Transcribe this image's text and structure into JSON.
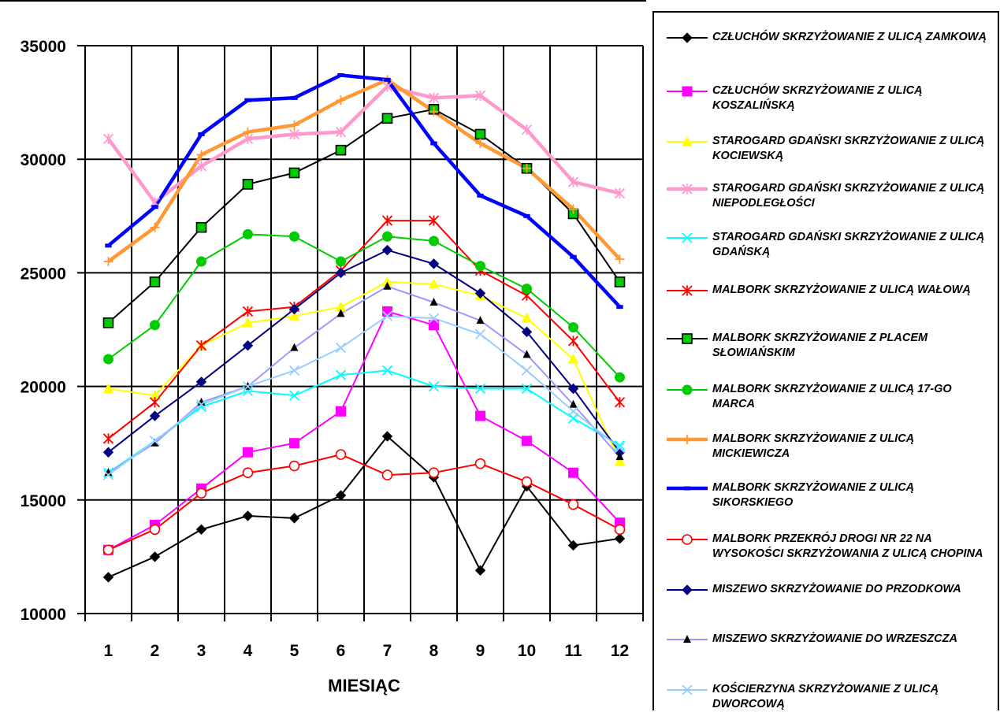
{
  "chart_data": {
    "type": "line",
    "xlabel": "MIESIĄC",
    "ylabel": "",
    "title": "",
    "x": [
      "1",
      "2",
      "3",
      "4",
      "5",
      "6",
      "7",
      "8",
      "9",
      "10",
      "11",
      "12"
    ],
    "ylim": [
      10000,
      35000
    ],
    "yticks": [
      "10000",
      "15000",
      "20000",
      "25000",
      "30000",
      "35000"
    ],
    "grid": true,
    "legend_position": "right",
    "series": [
      {
        "name": "CZŁUCHÓW SKRZYŻOWANIE Z ULICĄ ZAMKOWĄ",
        "color": "#000000",
        "marker": "diamond",
        "values": [
          11600,
          12500,
          13700,
          14300,
          14200,
          15200,
          17800,
          16000,
          11900,
          15600,
          13000,
          13300
        ]
      },
      {
        "name": "CZŁUCHÓW SKRZYŻOWANIE Z ULICĄ KOSZALIŃSKĄ",
        "color": "#FF00FF",
        "marker": "square",
        "values": [
          12800,
          13900,
          15500,
          17100,
          17500,
          18900,
          23300,
          22700,
          18700,
          17600,
          16200,
          14000
        ]
      },
      {
        "name": "STAROGARD GDAŃSKI SKRZYŻOWANIE Z ULICĄ KOCIEWSKĄ",
        "color": "#FFFF00",
        "marker": "triangle",
        "values": [
          19900,
          19600,
          21800,
          22800,
          23100,
          23500,
          24600,
          24500,
          24000,
          23000,
          21200,
          16700
        ]
      },
      {
        "name": "STAROGARD GDAŃSKI SKRZYŻOWANIE Z ULICĄ NIEPODLEGŁOŚCI",
        "color": "#FF99CC",
        "marker": "star",
        "values": [
          30900,
          28100,
          29700,
          30900,
          31100,
          31200,
          33200,
          32700,
          32800,
          31300,
          29000,
          28500
        ]
      },
      {
        "name": "STAROGARD GDAŃSKI SKRZYŻOWANIE Z ULICĄ GDAŃSKĄ",
        "color": "#00FFFF",
        "marker": "x",
        "values": [
          16200,
          17600,
          19100,
          19800,
          19600,
          20500,
          20700,
          20000,
          19900,
          19900,
          18600,
          17400
        ]
      },
      {
        "name": "MALBORK SKRZYŻOWANIE Z ULICĄ WAŁOWĄ",
        "color": "#FF0000",
        "marker": "star",
        "values": [
          17700,
          19300,
          21800,
          23300,
          23500,
          25100,
          27300,
          27300,
          25100,
          24000,
          22000,
          19300
        ]
      },
      {
        "name": "MALBORK SKRZYŻOWANIE Z PLACEM SŁOWIAŃSKIM",
        "color": "#000000",
        "marker": "square-green",
        "values": [
          22800,
          24600,
          27000,
          28900,
          29400,
          30400,
          31800,
          32200,
          31100,
          29600,
          27600,
          24600
        ]
      },
      {
        "name": "MALBORK SKRZYŻOWANIE Z ULICĄ 17-GO MARCA",
        "color": "#00CC00",
        "marker": "circle-filled",
        "values": [
          21200,
          22700,
          25500,
          26700,
          26600,
          25500,
          26600,
          26400,
          25300,
          24300,
          22600,
          20400
        ]
      },
      {
        "name": "MALBORK SKRZYŻOWANIE Z ULICĄ MICKIEWICZA",
        "color": "#FF9933",
        "marker": "plus",
        "values": [
          25500,
          27000,
          30200,
          31200,
          31500,
          32600,
          33500,
          32100,
          30700,
          29600,
          27800,
          25600
        ]
      },
      {
        "name": "MALBORK SKRZYŻOWANIE Z ULICĄ SIKORSKIEGO",
        "color": "#0000FF",
        "marker": "dash",
        "values": [
          26200,
          27900,
          31100,
          32600,
          32700,
          33700,
          33500,
          30700,
          28400,
          27500,
          25700,
          23500
        ]
      },
      {
        "name": "MALBORK PRZEKRÓJ DROGI NR 22 NA WYSOKOŚCI SKRZYŻOWANIA Z ULICĄ CHOPINA",
        "color": "#FF0000",
        "marker": "circle-open",
        "values": [
          12800,
          13700,
          15300,
          16200,
          16500,
          17000,
          16100,
          16200,
          16600,
          15800,
          14800,
          13700
        ]
      },
      {
        "name": "MISZEWO SKRZYŻOWANIE DO PRZODKOWA",
        "color": "#000080",
        "marker": "diamond",
        "values": [
          17100,
          18700,
          20200,
          21800,
          23400,
          25000,
          26000,
          25400,
          24100,
          22400,
          19900,
          17100
        ]
      },
      {
        "name": "MISZEWO SKRZYŻOWANIE DO WRZESZCZA",
        "color": "#9999FF",
        "marker": "triangle-black",
        "values": [
          16200,
          17500,
          19300,
          20000,
          21700,
          23200,
          24400,
          23700,
          22900,
          21400,
          19200,
          16900
        ]
      },
      {
        "name": "KOŚCIERZYNA SKRZYŻOWANIE Z ULICĄ DWORCOWĄ",
        "color": "#99CCFF",
        "marker": "x",
        "values": [
          16100,
          17600,
          19200,
          20000,
          20700,
          21700,
          23100,
          23000,
          22300,
          20700,
          18900,
          17300
        ]
      }
    ]
  },
  "legend": {
    "items": [
      {
        "label": "CZŁUCHÓW SKRZYŻOWANIE Z ULICĄ ZAMKOWĄ"
      },
      {
        "label": "CZŁUCHÓW SKRZYŻOWANIE Z ULICĄ\nKOSZALIŃSKĄ"
      },
      {
        "label": "STAROGARD GDAŃSKI SKRZYŻOWANIE Z ULICĄ\nKOCIEWSKĄ"
      },
      {
        "label": "STAROGARD GDAŃSKI SKRZYŻOWANIE Z ULICĄ\nNIEPODLEGŁOŚCI"
      },
      {
        "label": "STAROGARD GDAŃSKI SKRZYŻOWANIE Z ULICĄ\nGDAŃSKĄ"
      },
      {
        "label": "MALBORK SKRZYŻOWANIE Z ULICĄ WAŁOWĄ"
      },
      {
        "label": "MALBORK SKRZYŻOWANIE Z PLACEM\nSŁOWIAŃSKIM"
      },
      {
        "label": "MALBORK SKRZYŻOWANIE Z ULICĄ 17-GO\nMARCA"
      },
      {
        "label": "MALBORK SKRZYŻOWANIE Z ULICĄ\nMICKIEWICZA"
      },
      {
        "label": "MALBORK SKRZYŻOWANIE Z ULICĄ\nSIKORSKIEGO"
      },
      {
        "label": "MALBORK PRZEKRÓJ DROGI NR 22 NA\nWYSOKOŚCI SKRZYŻOWANIA Z ULICĄ CHOPINA"
      },
      {
        "label": "MISZEWO SKRZYŻOWANIE DO PRZODKOWA"
      },
      {
        "label": "MISZEWO SKRZYŻOWANIE DO WRZESZCZA"
      },
      {
        "label": "KOŚCIERZYNA SKRZYŻOWANIE Z ULICĄ\nDWORCOWĄ"
      }
    ]
  }
}
